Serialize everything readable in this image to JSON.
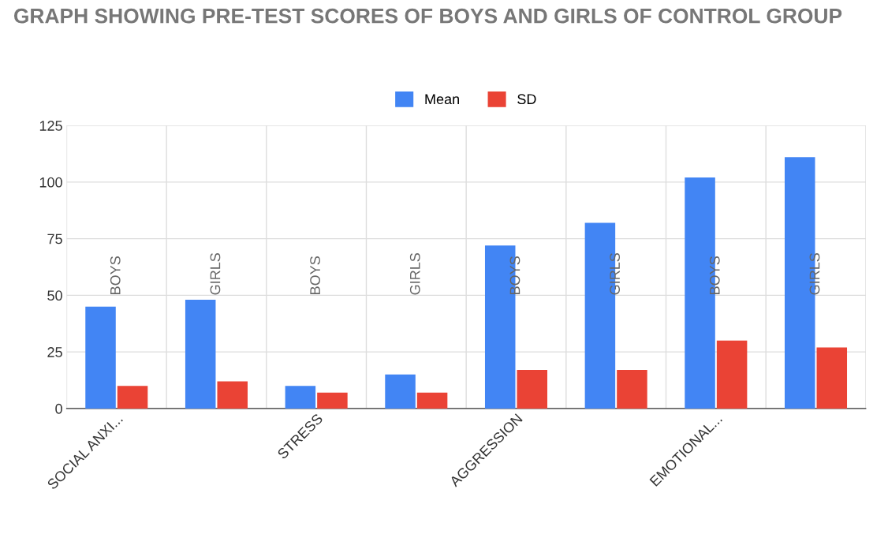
{
  "chart_data": {
    "type": "bar",
    "title": "GRAPH SHOWING PRE-TEST SCORES OF BOYS AND GIRLS OF CONTROL GROUP",
    "categories": [
      "SOCIAL ANXI...",
      null,
      "STRESS",
      null,
      "AGGRESSION",
      null,
      "EMOTIONAL...",
      null
    ],
    "series": [
      {
        "name": "Mean",
        "color": "#4285f4",
        "values": [
          45,
          48,
          10,
          15,
          72,
          82,
          102,
          111
        ]
      },
      {
        "name": "SD",
        "color": "#ea4335",
        "values": [
          10,
          12,
          7,
          7,
          17,
          17,
          30,
          27
        ]
      }
    ],
    "annotations": [
      "BOYS",
      "GIRLS",
      "BOYS",
      "GIRLS",
      "BOYS",
      "GIRLS",
      "BOYS",
      "GIRLS"
    ],
    "ylim": [
      0,
      125
    ],
    "yticks": [
      0,
      25,
      50,
      75,
      100,
      125
    ],
    "grid": true,
    "legend": "top"
  }
}
